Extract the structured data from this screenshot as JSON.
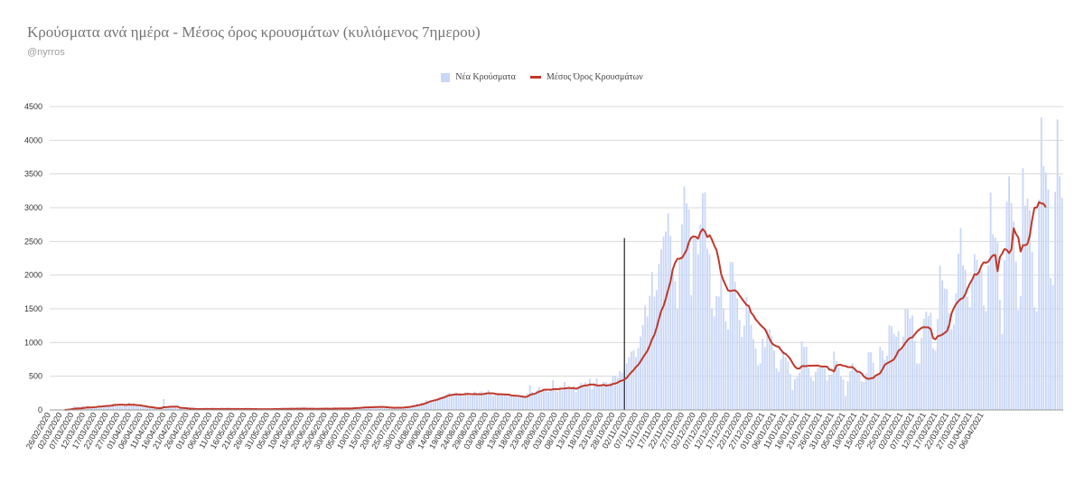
{
  "title": "Κρούσματα ανά ημέρα - Μέσος όρος κρουσμάτων (κυλιόμενος 7ημερου)",
  "subtitle": "@nyrros",
  "colors": {
    "bars": "#c9d7f7",
    "line": "#c0392b",
    "grid": "#d9d9d9",
    "marker": "#222222"
  },
  "chart_data": {
    "type": "bar",
    "legend_position": "top",
    "grid": true,
    "ylim": [
      0,
      4500
    ],
    "yticks": [
      0,
      500,
      1000,
      1500,
      2000,
      2500,
      3000,
      3500,
      4000,
      4500
    ],
    "xlabel": "",
    "ylabel": "",
    "x_start": "26/02/2020",
    "x_end": "08/04/2021",
    "xtick_labels": [
      "26/02/2020",
      "02/03/2020",
      "07/03/2020",
      "12/03/2020",
      "17/03/2020",
      "22/03/2020",
      "27/03/2020",
      "01/04/2020",
      "06/04/2020",
      "11/04/2020",
      "16/04/2020",
      "21/04/2020",
      "26/04/2020",
      "01/05/2020",
      "06/05/2020",
      "11/05/2020",
      "16/05/2020",
      "21/05/2020",
      "26/05/2020",
      "31/05/2020",
      "05/06/2020",
      "10/06/2020",
      "15/06/2020",
      "20/06/2020",
      "25/06/2020",
      "30/06/2020",
      "05/07/2020",
      "10/07/2020",
      "15/07/2020",
      "20/07/2020",
      "25/07/2020",
      "30/07/2020",
      "04/08/2020",
      "09/08/2020",
      "14/08/2020",
      "19/08/2020",
      "24/08/2020",
      "29/08/2020",
      "03/09/2020",
      "08/09/2020",
      "13/09/2020",
      "18/09/2020",
      "23/09/2020",
      "28/09/2020",
      "03/10/2020",
      "08/10/2020",
      "13/10/2020",
      "18/10/2020",
      "23/10/2020",
      "28/10/2020",
      "02/11/2020",
      "07/11/2020",
      "12/11/2020",
      "17/11/2020",
      "22/11/2020",
      "27/11/2020",
      "02/12/2020",
      "07/12/2020",
      "12/12/2020",
      "17/12/2020",
      "22/12/2020",
      "27/12/2020",
      "01/01/2021",
      "06/01/2021",
      "11/01/2021",
      "16/01/2021",
      "21/01/2021",
      "26/01/2021",
      "31/01/2021",
      "05/02/2021",
      "10/02/2021",
      "15/02/2021",
      "20/02/2021",
      "25/02/2021",
      "02/03/2021",
      "07/03/2021",
      "12/03/2021",
      "17/03/2021",
      "22/03/2021",
      "27/03/2021",
      "01/04/2021",
      "06/04/2021"
    ],
    "marker_date": "01/11/2020",
    "series": [
      {
        "name": "Νέα Κρούσματα",
        "kind": "bar",
        "values": [
          1,
          0,
          1,
          2,
          0,
          3,
          4,
          12,
          22,
          31,
          51,
          43,
          33,
          19,
          62,
          45,
          59,
          40,
          55,
          45,
          54,
          61,
          56,
          61,
          73,
          71,
          64,
          95,
          90,
          72,
          67,
          61,
          62,
          65,
          112,
          62,
          86,
          62,
          52,
          58,
          42,
          42,
          40,
          31,
          35,
          20,
          14,
          38,
          47,
          161,
          40,
          54,
          43,
          37,
          36,
          27,
          21,
          28,
          15,
          13,
          16,
          17,
          20,
          12,
          11,
          10,
          17,
          16,
          20,
          15,
          25,
          12,
          18,
          12,
          21,
          13,
          8,
          22,
          12,
          16,
          16,
          15,
          12,
          15,
          16,
          14,
          10,
          11,
          16,
          11,
          5,
          13,
          9,
          14,
          15,
          11,
          16,
          13,
          12,
          12,
          26,
          17,
          26,
          13,
          19,
          21,
          10,
          27,
          12,
          16,
          17,
          15,
          19,
          19,
          18,
          13,
          22,
          25,
          16,
          26,
          18,
          17,
          20,
          24,
          20,
          18,
          22,
          21,
          23,
          23,
          25,
          32,
          31,
          34,
          33,
          44,
          46,
          38,
          50,
          47,
          45,
          43,
          32,
          45,
          48,
          29,
          35,
          25,
          29,
          33,
          35,
          31,
          39,
          38,
          45,
          52,
          55,
          69,
          73,
          98,
          89,
          107,
          110,
          144,
          124,
          133,
          125,
          150,
          175,
          191,
          190,
          204,
          227,
          256,
          228,
          210,
          257,
          236,
          225,
          207,
          263,
          238,
          215,
          218,
          272,
          234,
          259,
          277,
          241,
          257,
          295,
          245,
          211,
          225,
          252,
          235,
          226,
          240,
          213,
          235,
          209,
          194,
          196,
          182,
          193,
          192,
          187,
          247,
          368,
          268,
          221,
          296,
          338,
          265,
          302,
          296,
          267,
          310,
          440,
          319,
          271,
          338,
          289,
          415,
          312,
          321,
          330,
          349,
          263,
          342,
          403,
          356,
          411,
          392,
          463,
          308,
          368,
          466,
          366,
          381,
          416,
          413,
          369,
          409,
          501,
          508,
          480,
          578,
          553,
          599,
          691,
          782,
          865,
          882,
          786,
          918,
          1090,
          1259,
          1550,
          1386,
          1694,
          2046,
          1679,
          1775,
          2166,
          2387,
          2574,
          2646,
          2917,
          2581,
          2015,
          1910,
          1497,
          2268,
          2752,
          3316,
          3066,
          2975,
          1701,
          2586,
          2549,
          2311,
          2751,
          3209,
          3226,
          2390,
          2312,
          1498,
          1388,
          1689,
          1680,
          2005,
          1497,
          1316,
          1193,
          2194,
          2192,
          1904,
          1657,
          1334,
          1081,
          1251,
          1677,
          1480,
          1264,
          1049,
          910,
          662,
          692,
          1057,
          932,
          1195,
          1199,
          1094,
          884,
          617,
          567,
          753,
          876,
          778,
          714,
          532,
          300,
          458,
          488,
          548,
          1016,
          935,
          938,
          628,
          486,
          426,
          567,
          624,
          628,
          639,
          620,
          437,
          524,
          526,
          867,
          723,
          631,
          497,
          453,
          206,
          425,
          577,
          693,
          616,
          571,
          536,
          427,
          416,
          542,
          856,
          855,
          701,
          526,
          497,
          934,
          879,
          742,
          804,
          1257,
          1242,
          1129,
          1089,
          1168,
          889,
          1087,
          1501,
          1492,
          1359,
          1401,
          1026,
          690,
          688,
          1069,
          1352,
          1461,
          1396,
          1441,
          914,
          880,
          1348,
          2140,
          1921,
          1802,
          1793,
          1435,
          1200,
          1267,
          1730,
          2320,
          2702,
          2147,
          2078,
          1678,
          1525,
          1930,
          2310,
          2229,
          2095,
          2061,
          1549,
          1468,
          2143,
          3223,
          2605,
          2557,
          2488,
          1636,
          1128,
          2224,
          3088,
          3465,
          3066,
          2792,
          2200,
          1479,
          1689,
          3586,
          3029,
          3136,
          2960,
          2346,
          1521,
          1464,
          3119,
          4340,
          3617,
          3521,
          3268,
          1955,
          1852,
          3234,
          4309,
          3465,
          3147
        ]
      },
      {
        "name": "Μέσος Όρος Κρουσμάτων",
        "kind": "line",
        "values": [
          null,
          null,
          null,
          null,
          null,
          null,
          2,
          3,
          6,
          11,
          17,
          21,
          23,
          24,
          29,
          34,
          38,
          36,
          38,
          41,
          45,
          51,
          51,
          56,
          59,
          61,
          63,
          69,
          76,
          77,
          78,
          78,
          76,
          75,
          80,
          76,
          79,
          74,
          70,
          69,
          61,
          57,
          49,
          44,
          40,
          35,
          28,
          27,
          27,
          41,
          42,
          45,
          49,
          49,
          49,
          50,
          33,
          31,
          28,
          25,
          22,
          19,
          18,
          15,
          14,
          13,
          15,
          15,
          15,
          14,
          17,
          15,
          15,
          14,
          16,
          15,
          15,
          16,
          15,
          15,
          15,
          15,
          15,
          14,
          15,
          15,
          15,
          14,
          14,
          13,
          12,
          12,
          11,
          12,
          12,
          11,
          12,
          13,
          13,
          13,
          16,
          17,
          17,
          17,
          18,
          19,
          17,
          20,
          19,
          20,
          21,
          18,
          19,
          18,
          18,
          16,
          17,
          19,
          19,
          20,
          20,
          19,
          19,
          21,
          20,
          21,
          22,
          21,
          22,
          22,
          22,
          24,
          26,
          28,
          30,
          33,
          37,
          38,
          39,
          41,
          42,
          44,
          43,
          45,
          46,
          43,
          41,
          37,
          35,
          32,
          33,
          33,
          34,
          35,
          39,
          42,
          46,
          52,
          58,
          67,
          73,
          82,
          89,
          103,
          117,
          130,
          138,
          146,
          155,
          168,
          179,
          190,
          206,
          218,
          223,
          228,
          232,
          231,
          229,
          229,
          235,
          239,
          236,
          234,
          236,
          234,
          233,
          233,
          238,
          245,
          247,
          248,
          246,
          240,
          233,
          234,
          233,
          229,
          229,
          227,
          215,
          213,
          211,
          207,
          203,
          198,
          193,
          200,
          223,
          234,
          238,
          254,
          273,
          282,
          299,
          301,
          301,
          300,
          306,
          311,
          306,
          313,
          317,
          318,
          323,
          328,
          323,
          325,
          314,
          327,
          343,
          357,
          364,
          365,
          378,
          376,
          378,
          363,
          363,
          365,
          373,
          360,
          368,
          368,
          387,
          392,
          404,
          427,
          435,
          451,
          476,
          519,
          559,
          592,
          636,
          669,
          718,
          776,
          826,
          878,
          953,
          1048,
          1114,
          1219,
          1351,
          1470,
          1543,
          1655,
          1784,
          1902,
          2085,
          2182,
          2241,
          2244,
          2255,
          2311,
          2372,
          2490,
          2555,
          2574,
          2568,
          2540,
          2637,
          2682,
          2645,
          2563,
          2591,
          2525,
          2440,
          2370,
          2213,
          2015,
          1923,
          1846,
          1774,
          1764,
          1772,
          1775,
          1748,
          1696,
          1651,
          1604,
          1558,
          1542,
          1443,
          1403,
          1341,
          1305,
          1262,
          1230,
          1199,
          1130,
          1056,
          990,
          962,
          944,
          937,
          889,
          846,
          831,
          798,
          757,
          696,
          642,
          615,
          614,
          649,
          651,
          650,
          657,
          657,
          658,
          658,
          659,
          648,
          645,
          645,
          641,
          598,
          592,
          571,
          655,
          669,
          670,
          654,
          652,
          634,
          634,
          636,
          608,
          569,
          565,
          541,
          496,
          471,
          459,
          470,
          473,
          508,
          525,
          544,
          601,
          668,
          691,
          710,
          727,
          750,
          808,
          880,
          903,
          944,
          996,
          1038,
          1069,
          1076,
          1119,
          1162,
          1191,
          1217,
          1229,
          1225,
          1225,
          1196,
          1067,
          1048,
          1094,
          1102,
          1118,
          1143,
          1167,
          1259,
          1430,
          1511,
          1571,
          1614,
          1645,
          1660,
          1717,
          1805,
          1877,
          1935,
          2013,
          2005,
          2048,
          2141,
          2190,
          2183,
          2201,
          2253,
          2293,
          2299,
          2058,
          2266,
          2320,
          2386,
          2375,
          2327,
          2378,
          2694,
          2610,
          2558,
          2349,
          2443,
          2442,
          2464,
          2589,
          2819,
          3000,
          3001,
          3081,
          3064,
          3057,
          3005
        ]
      }
    ]
  }
}
